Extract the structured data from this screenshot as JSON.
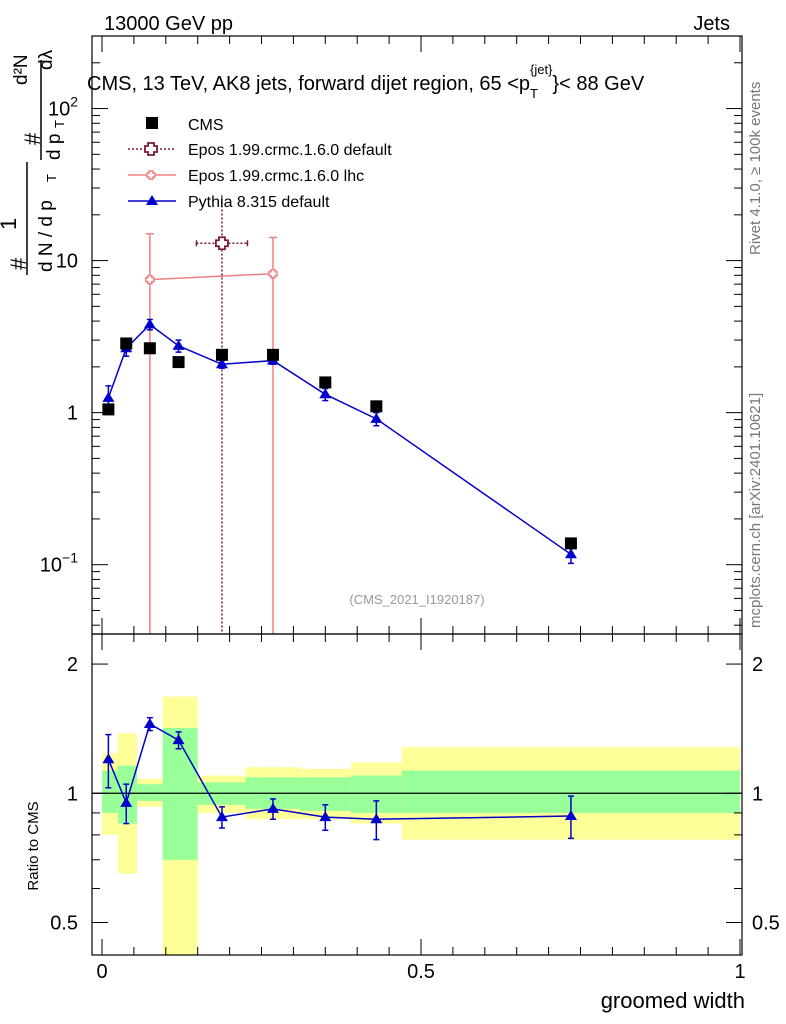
{
  "header": {
    "energy_label": "13000 GeV pp",
    "category_label": "Jets",
    "title_main": "CMS, 13 TeV, AK8 jets, forward dijet region, 65 <p",
    "title_sub": "T",
    "title_sup": "{jet}",
    "title_end": "}< 88 GeV",
    "rivet_label": "Rivet 4.1.0, ≥ 100k events",
    "mcplots_label": "mcplots.cern.ch [arXiv:2401.10621]",
    "analysis_id": "(CMS_2021_I1920187)"
  },
  "chart_data": [
    {
      "type": "scatter",
      "panel": "main",
      "ylabel": "1/(dN/dp_T) d²N/(dp_T dλ)",
      "xlim": [
        0,
        1
      ],
      "ylim": [
        0.035,
        300
      ],
      "yscale": "log",
      "yticks": [
        {
          "value": 0.1,
          "base": "10",
          "exp": "−1"
        },
        {
          "value": 1,
          "base": "1",
          "exp": ""
        },
        {
          "value": 10,
          "base": "10",
          "exp": ""
        },
        {
          "value": 100,
          "base": "10",
          "exp": "2"
        }
      ],
      "legend": [
        {
          "label": "CMS",
          "color": "#000000",
          "marker": "square"
        },
        {
          "label": "Epos 1.99.crmc.1.6.0 default",
          "color": "#7a1a3a",
          "marker": "open-cross"
        },
        {
          "label": "Epos 1.99.crmc.1.6.0 lhc",
          "color": "#f08080",
          "marker": "open-cross"
        },
        {
          "label": "Pythia 8.315 default",
          "color": "#0000cc",
          "marker": "triangle"
        }
      ],
      "series": [
        {
          "name": "CMS",
          "x": [
            0.01,
            0.038,
            0.075,
            0.12,
            0.188,
            0.268,
            0.35,
            0.43,
            0.735
          ],
          "y": [
            1.05,
            2.85,
            2.65,
            2.15,
            2.4,
            2.4,
            1.58,
            1.1,
            0.138
          ]
        },
        {
          "name": "Epos 1.99.crmc.1.6.0 default",
          "x": [
            0.188
          ],
          "y": [
            13.0
          ],
          "xerr_lo": [
            0.04
          ],
          "xerr_hi": [
            0.04
          ],
          "yerr_lo": [
            12.99
          ],
          "yerr_hi": [
            13.0
          ]
        },
        {
          "name": "Epos 1.99.crmc.1.6.0 lhc",
          "x": [
            0.075,
            0.268
          ],
          "y": [
            7.5,
            8.2
          ],
          "yerr_lo": [
            7.49,
            8.19
          ],
          "yerr_hi": [
            7.5,
            6.0
          ]
        },
        {
          "name": "Pythia 8.315 default",
          "x": [
            0.01,
            0.038,
            0.075,
            0.12,
            0.188,
            0.268,
            0.35,
            0.43,
            0.735
          ],
          "y": [
            1.25,
            2.65,
            3.8,
            2.75,
            2.08,
            2.2,
            1.32,
            0.91,
            0.117
          ],
          "yerr_lo": [
            0.15,
            0.3,
            0.3,
            0.25,
            0.12,
            0.12,
            0.12,
            0.09,
            0.015
          ],
          "yerr_hi": [
            0.25,
            0.3,
            0.3,
            0.25,
            0.12,
            0.12,
            0.12,
            0.09,
            0.015
          ]
        }
      ]
    },
    {
      "type": "scatter",
      "panel": "ratio",
      "xlabel": "groomed width",
      "ylabel": "Ratio to CMS",
      "xlim": [
        0,
        1
      ],
      "ylim": [
        0.42,
        2.35
      ],
      "yscale": "log",
      "yticks": [
        0.5,
        1,
        2
      ],
      "xticks": [
        0,
        0.5,
        1
      ],
      "bands": [
        {
          "x0": 0.0,
          "x1": 0.025,
          "yellow": [
            0.8,
            1.24
          ],
          "green": [
            0.9,
            1.13
          ]
        },
        {
          "x0": 0.025,
          "x1": 0.055,
          "yellow": [
            0.65,
            1.38
          ],
          "green": [
            0.85,
            1.16
          ]
        },
        {
          "x0": 0.055,
          "x1": 0.095,
          "yellow": [
            0.93,
            1.08
          ],
          "green": [
            0.96,
            1.05
          ]
        },
        {
          "x0": 0.095,
          "x1": 0.15,
          "yellow": [
            0.42,
            1.68
          ],
          "green": [
            0.7,
            1.42
          ]
        },
        {
          "x0": 0.15,
          "x1": 0.225,
          "yellow": [
            0.9,
            1.1
          ],
          "green": [
            0.94,
            1.06
          ]
        },
        {
          "x0": 0.225,
          "x1": 0.31,
          "yellow": [
            0.87,
            1.15
          ],
          "green": [
            0.92,
            1.09
          ]
        },
        {
          "x0": 0.31,
          "x1": 0.39,
          "yellow": [
            0.87,
            1.14
          ],
          "green": [
            0.91,
            1.09
          ]
        },
        {
          "x0": 0.39,
          "x1": 0.47,
          "yellow": [
            0.85,
            1.18
          ],
          "green": [
            0.9,
            1.1
          ]
        },
        {
          "x0": 0.47,
          "x1": 1.0,
          "yellow": [
            0.78,
            1.28
          ],
          "green": [
            0.9,
            1.13
          ]
        }
      ],
      "series": [
        {
          "name": "Pythia 8.315 default",
          "x": [
            0.01,
            0.038,
            0.075,
            0.12,
            0.188,
            0.268,
            0.35,
            0.43,
            0.735
          ],
          "y": [
            1.2,
            0.95,
            1.45,
            1.33,
            0.88,
            0.92,
            0.88,
            0.87,
            0.885
          ],
          "yerr_lo": [
            0.17,
            0.1,
            0.05,
            0.06,
            0.05,
            0.05,
            0.06,
            0.09,
            0.1
          ],
          "yerr_hi": [
            0.17,
            0.1,
            0.05,
            0.06,
            0.05,
            0.05,
            0.06,
            0.09,
            0.1
          ]
        }
      ]
    }
  ]
}
